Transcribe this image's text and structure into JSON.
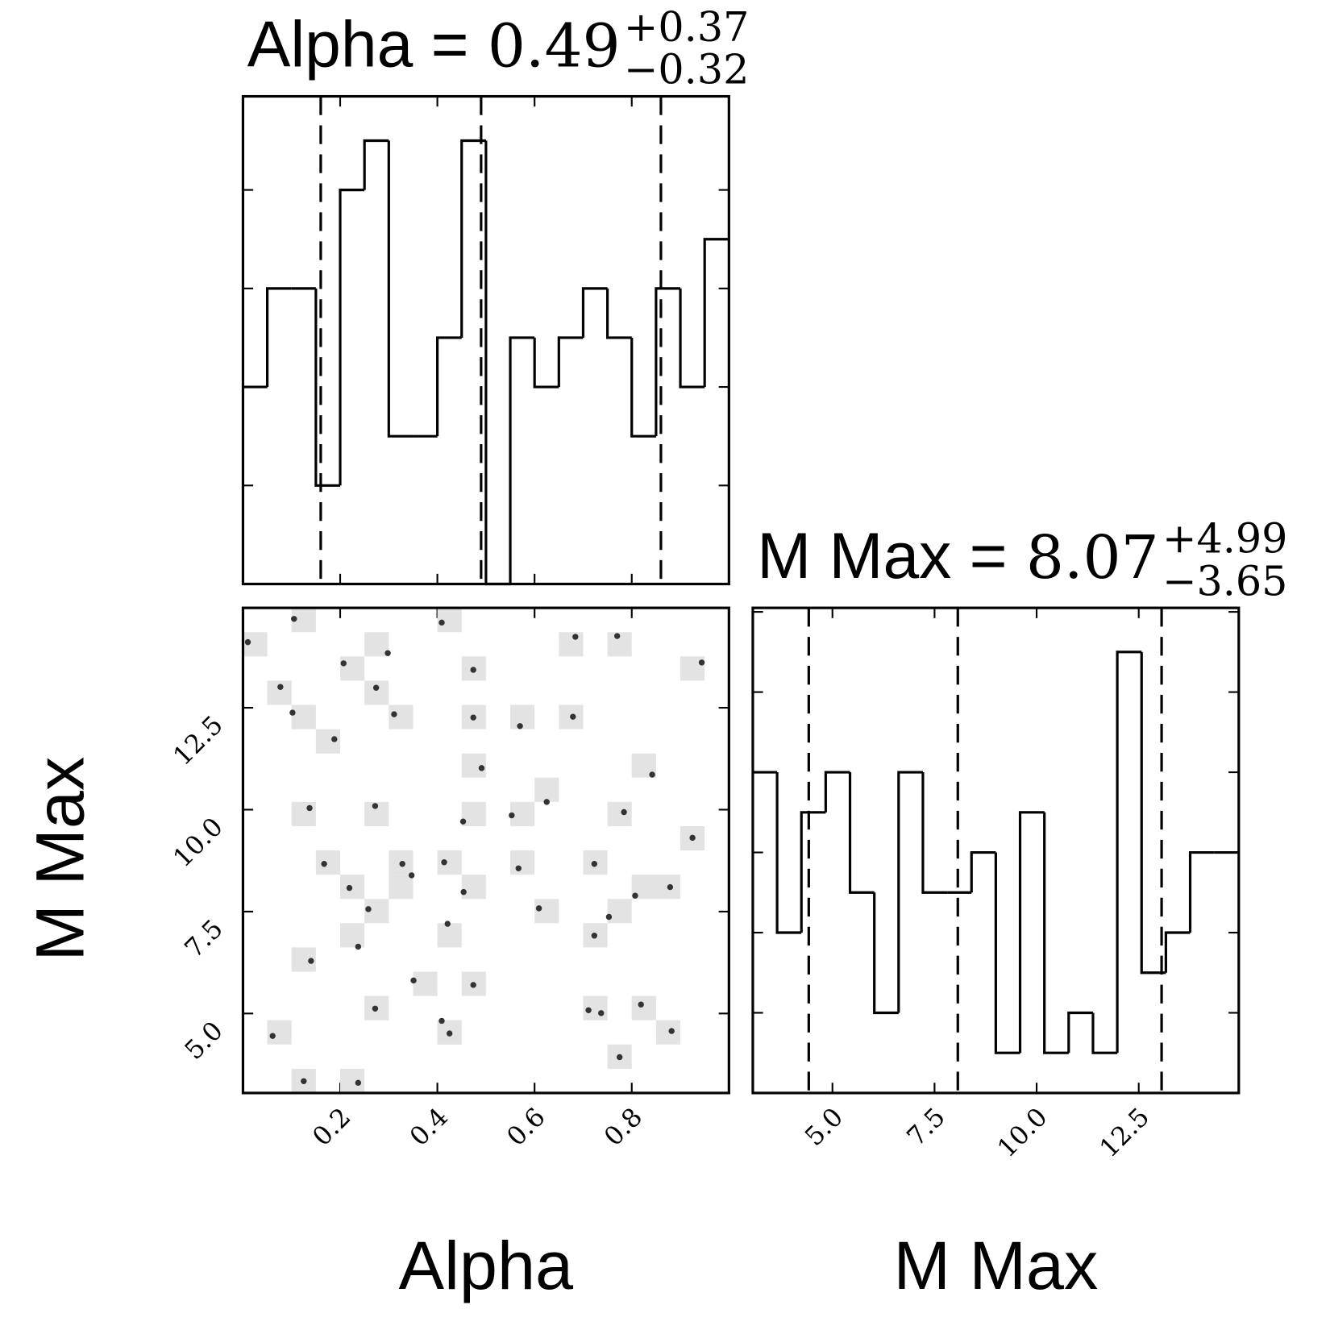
{
  "chart_data": [
    {
      "type": "histogram",
      "title": "Alpha =",
      "title_value": "0.49",
      "title_upper": "+0.37",
      "title_lower": "−0.32",
      "bins": [
        0,
        0.05,
        0.1,
        0.15,
        0.2,
        0.25,
        0.3,
        0.35,
        0.4,
        0.45,
        0.5,
        0.55,
        0.6,
        0.65,
        0.7,
        0.75,
        0.8,
        0.85,
        0.9,
        0.95,
        1.0
      ],
      "values": [
        4,
        6,
        6,
        2,
        8,
        9,
        3,
        3,
        5,
        9,
        0,
        5,
        4,
        5,
        6,
        5,
        3,
        6,
        4,
        7
      ],
      "quantiles": [
        0.16,
        0.49,
        0.86
      ],
      "color": "#000000",
      "xlim": [
        0,
        1.0
      ],
      "ylim": [
        0,
        9.9
      ],
      "xticks": [
        0.2,
        0.4,
        0.6,
        0.8
      ],
      "yticks": [
        2,
        4,
        6,
        8
      ],
      "show_xtick_labels": false
    },
    {
      "type": "scatter",
      "xlabel": "Alpha",
      "ylabel": "M Max",
      "x": [
        0.01,
        0.077,
        0.102,
        0.125,
        0.137,
        0.14,
        0.167,
        0.188,
        0.207,
        0.219,
        0.237,
        0.258,
        0.272,
        0.274,
        0.298,
        0.311,
        0.328,
        0.347,
        0.351,
        0.409,
        0.414,
        0.421,
        0.409,
        0.453,
        0.454,
        0.491,
        0.553,
        0.567,
        0.57,
        0.609,
        0.625,
        0.679,
        0.684,
        0.737,
        0.753,
        0.77,
        0.784,
        0.807,
        0.819,
        0.842,
        0.882,
        0.925,
        0.944,
        0.272,
        0.474,
        0.474,
        0.474,
        0.425,
        0.723,
        0.723,
        0.775,
        0.879,
        0.061,
        0.237,
        0.711,
        0.105
      ],
      "y": [
        14.11,
        13.01,
        12.38,
        3.34,
        10.04,
        6.29,
        8.67,
        11.73,
        13.59,
        8.08,
        6.64,
        7.56,
        10.09,
        12.99,
        13.84,
        12.34,
        8.67,
        8.39,
        5.81,
        4.82,
        8.71,
        7.2,
        14.59,
        9.71,
        7.98,
        11.02,
        9.86,
        8.56,
        12.05,
        7.58,
        10.19,
        12.28,
        14.24,
        5.01,
        7.37,
        14.26,
        9.94,
        7.89,
        5.22,
        10.86,
        4.57,
        9.31,
        13.61,
        5.12,
        13.43,
        12.26,
        5.7,
        4.51,
        8.67,
        6.91,
        3.93,
        8.1,
        4.45,
        3.3,
        5.08,
        14.68
      ],
      "color": "#333333",
      "xlim": [
        0,
        1.0
      ],
      "ylim": [
        3.05,
        14.95
      ],
      "xticks": [
        0.2,
        0.4,
        0.6,
        0.8
      ],
      "yticks": [
        {
          "value": 5,
          "label": "5.0"
        },
        7.5,
        {
          "value": 10,
          "label": "10.0"
        },
        12.5
      ]
    },
    {
      "type": "histogram",
      "title": "M Max =",
      "title_value": "8.07",
      "title_upper": "+4.99",
      "title_lower": "−3.65",
      "xlabel": "M Max",
      "bins": [
        3.05,
        3.645,
        4.24,
        4.835,
        5.43,
        6.025,
        6.62,
        7.215,
        7.81,
        8.405,
        9.0,
        9.595,
        10.19,
        10.785,
        11.38,
        11.975,
        12.57,
        13.165,
        13.76,
        14.355,
        14.95
      ],
      "values": [
        8,
        4,
        7,
        8,
        5,
        2,
        8,
        5,
        5,
        6,
        1,
        7,
        1,
        2,
        1,
        11,
        3,
        4,
        6,
        6
      ],
      "quantiles": [
        4.42,
        8.07,
        13.06
      ],
      "color": "#000000",
      "xlim": [
        3.05,
        14.95
      ],
      "ylim": [
        0,
        12.1
      ],
      "xticks": [
        {
          "value": 5,
          "label": "5.0"
        },
        7.5,
        {
          "value": 10,
          "label": "10.0"
        },
        12.5
      ],
      "yticks": [
        2,
        4,
        6,
        8,
        10,
        12
      ],
      "show_xtick_labels": true
    }
  ]
}
